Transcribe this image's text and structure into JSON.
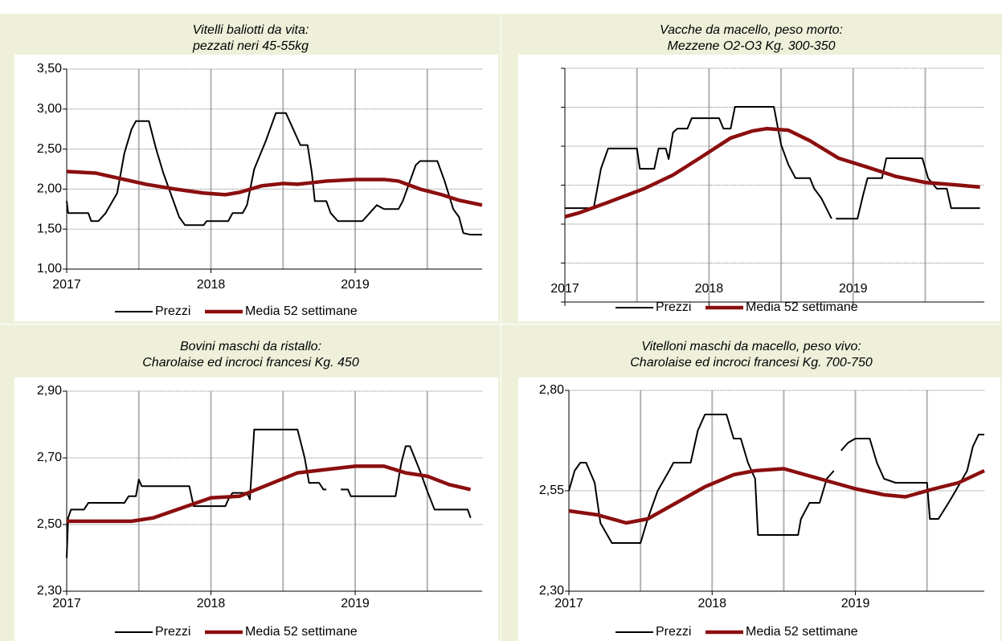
{
  "chart_data": [
    {
      "type": "line",
      "title": [
        "Vitelli baliotti da vita:",
        "pezzati neri 45-55kg"
      ],
      "xlim": [
        2017,
        2019.88
      ],
      "xticks": [
        2017,
        2018,
        2019
      ],
      "xgrid": [
        2017.5,
        2018,
        2018.5,
        2019,
        2019.5
      ],
      "ylim": [
        1,
        3.5
      ],
      "yticks": [
        {
          "value": 1,
          "label": "1,00"
        },
        {
          "value": 1.5,
          "label": "1,50"
        },
        {
          "value": 2,
          "label": "2,00"
        },
        {
          "value": 2.5,
          "label": "2,50"
        },
        {
          "value": 3,
          "label": "3,00"
        },
        {
          "value": 3.5,
          "label": "3,50"
        }
      ],
      "grid": true,
      "series": [
        {
          "name": "Prezzi",
          "color": "#000000",
          "x": [
            2017,
            2017.01,
            2017.15,
            2017.17,
            2017.22,
            2017.27,
            2017.35,
            2017.4,
            2017.45,
            2017.48,
            2017.57,
            2017.62,
            2017.67,
            2017.72,
            2017.78,
            2017.82,
            2017.95,
            2017.97,
            2018.12,
            2018.15,
            2018.22,
            2018.25,
            2018.3,
            2018.38,
            2018.45,
            2018.52,
            2018.57,
            2018.62,
            2018.67,
            2018.7,
            2018.72,
            2018.8,
            2018.83,
            2018.88,
            2019.05,
            2019.1,
            2019.15,
            2019.2,
            2019.3,
            2019.33,
            2019.38,
            2019.42,
            2019.45,
            2019.57,
            2019.62,
            2019.68,
            2019.72,
            2019.75,
            2019.8,
            2019.88
          ],
          "values": [
            1.85,
            1.7,
            1.7,
            1.6,
            1.6,
            1.7,
            1.95,
            2.45,
            2.75,
            2.85,
            2.85,
            2.5,
            2.2,
            1.95,
            1.65,
            1.55,
            1.55,
            1.6,
            1.6,
            1.7,
            1.7,
            1.8,
            2.25,
            2.6,
            2.95,
            2.95,
            2.75,
            2.55,
            2.55,
            2.2,
            1.85,
            1.85,
            1.7,
            1.6,
            1.6,
            1.7,
            1.8,
            1.75,
            1.75,
            1.85,
            2.1,
            2.3,
            2.35,
            2.35,
            2.1,
            1.75,
            1.65,
            1.45,
            1.43,
            1.43
          ]
        },
        {
          "name": "Media 52 settimane",
          "color": "#8b0e0e",
          "x": [
            2017,
            2017.2,
            2017.4,
            2017.55,
            2017.75,
            2017.95,
            2018.1,
            2018.2,
            2018.35,
            2018.5,
            2018.6,
            2018.8,
            2019,
            2019.2,
            2019.3,
            2019.45,
            2019.6,
            2019.72,
            2019.88
          ],
          "values": [
            2.22,
            2.2,
            2.12,
            2.06,
            2.0,
            1.95,
            1.93,
            1.96,
            2.04,
            2.07,
            2.06,
            2.1,
            2.12,
            2.12,
            2.1,
            2.0,
            1.93,
            1.86,
            1.8
          ]
        }
      ]
    },
    {
      "type": "line",
      "title": [
        "Vacche da macello, peso morto:",
        "Mezzene O2-O3 Kg. 300-350"
      ],
      "xlim": [
        2017,
        2019.91
      ],
      "xticks": [
        2017,
        2018,
        2019
      ],
      "xgrid": [
        2017.5,
        2018,
        2018.5,
        2019,
        2019.5
      ],
      "ylim": [
        0,
        6
      ],
      "yticks": [
        0,
        1,
        2,
        3,
        4,
        5,
        6
      ],
      "ytick_labels": false,
      "grid": true,
      "series": [
        {
          "name": "Prezzi",
          "color": "#000000",
          "x": [
            2017,
            2017.2,
            2017.25,
            2017.3,
            2017.5,
            2017.52,
            2017.62,
            2017.65,
            2017.7,
            2017.72,
            2017.75,
            2017.78,
            2017.85,
            2017.88,
            2018.07,
            2018.1,
            2018.15,
            2018.18,
            2018.45,
            2018.5,
            2018.55,
            2018.6,
            2018.7,
            2018.73,
            2018.78,
            2018.85,
            2018.86,
            2018.88,
            2019.03,
            2019.07,
            2019.1,
            2019.2,
            2019.23,
            2019.48,
            2019.52,
            2019.58,
            2019.65,
            2019.68,
            2019.88
          ],
          "values": [
            2.41,
            2.41,
            3.42,
            3.94,
            3.94,
            3.42,
            3.42,
            3.94,
            3.94,
            3.67,
            4.35,
            4.45,
            4.45,
            4.72,
            4.72,
            4.45,
            4.45,
            5.01,
            5.01,
            4.04,
            3.53,
            3.18,
            3.18,
            2.91,
            2.66,
            2.14,
            null,
            2.14,
            2.14,
            2.76,
            3.18,
            3.18,
            3.69,
            3.69,
            3.18,
            2.91,
            2.91,
            2.41,
            2.41
          ]
        },
        {
          "name": "Media 52 settimane",
          "color": "#8b0e0e",
          "x": [
            2017,
            2017.1,
            2017.3,
            2017.55,
            2017.75,
            2017.95,
            2018.15,
            2018.3,
            2018.4,
            2018.55,
            2018.7,
            2018.9,
            2019.1,
            2019.3,
            2019.5,
            2019.7,
            2019.88
          ],
          "values": [
            2.19,
            2.29,
            2.56,
            2.91,
            3.26,
            3.73,
            4.21,
            4.39,
            4.45,
            4.41,
            4.14,
            3.69,
            3.46,
            3.22,
            3.07,
            3.01,
            2.95
          ]
        }
      ]
    },
    {
      "type": "line",
      "title": [
        "Bovini maschi da ristallo:",
        "Charolaise ed incroci francesi Kg. 450"
      ],
      "xlim": [
        2017,
        2019.88
      ],
      "xticks": [
        2017,
        2018,
        2019
      ],
      "xgrid": [
        2017.5,
        2018,
        2018.5,
        2019,
        2019.5
      ],
      "ylim": [
        2.3,
        2.9
      ],
      "yticks": [
        {
          "value": 2.3,
          "label": "2,30"
        },
        {
          "value": 2.5,
          "label": "2,50"
        },
        {
          "value": 2.7,
          "label": "2,70"
        },
        {
          "value": 2.9,
          "label": "2,90"
        }
      ],
      "grid": true,
      "series": [
        {
          "name": "Prezzi",
          "color": "#000000",
          "x": [
            2017,
            2017.01,
            2017.03,
            2017.12,
            2017.15,
            2017.4,
            2017.43,
            2017.48,
            2017.5,
            2017.52,
            2017.85,
            2017.88,
            2018.1,
            2018.12,
            2018.15,
            2018.25,
            2018.27,
            2018.3,
            2018.6,
            2018.65,
            2018.68,
            2018.75,
            2018.78,
            2018.8,
            2018.85,
            2018.9,
            2018.95,
            2018.97,
            2019.28,
            2019.32,
            2019.35,
            2019.38,
            2019.45,
            2019.5,
            2019.55,
            2019.78,
            2019.8
          ],
          "values": [
            2.4,
            2.52,
            2.545,
            2.545,
            2.565,
            2.565,
            2.585,
            2.585,
            2.635,
            2.615,
            2.615,
            2.555,
            2.555,
            2.575,
            2.595,
            2.595,
            2.575,
            2.785,
            2.785,
            2.7,
            2.625,
            2.625,
            2.605,
            2.605,
            null,
            2.605,
            2.605,
            2.585,
            2.585,
            2.685,
            2.735,
            2.735,
            2.66,
            2.6,
            2.545,
            2.545,
            2.52
          ]
        },
        {
          "name": "Media 52 settimane",
          "color": "#8b0e0e",
          "x": [
            2017,
            2017.3,
            2017.45,
            2017.6,
            2017.8,
            2018,
            2018.2,
            2018.4,
            2018.6,
            2018.8,
            2019,
            2019.2,
            2019.35,
            2019.5,
            2019.65,
            2019.8
          ],
          "values": [
            2.51,
            2.51,
            2.51,
            2.52,
            2.55,
            2.58,
            2.585,
            2.62,
            2.655,
            2.665,
            2.675,
            2.675,
            2.655,
            2.645,
            2.62,
            2.605
          ]
        }
      ]
    },
    {
      "type": "line",
      "title": [
        "Vitelloni maschi da macello, peso vivo:",
        "Charolaise ed incroci francesi Kg. 700-750"
      ],
      "xlim": [
        2017,
        2019.9
      ],
      "xticks": [
        2017,
        2018,
        2019
      ],
      "xgrid": [
        2017.5,
        2018,
        2018.5,
        2019,
        2019.5
      ],
      "ylim": [
        2.3,
        2.8
      ],
      "yticks": [
        {
          "value": 2.3,
          "label": "2,30"
        },
        {
          "value": 2.55,
          "label": "2,55"
        },
        {
          "value": 2.8,
          "label": "2,80"
        }
      ],
      "grid": true,
      "series": [
        {
          "name": "Prezzi",
          "color": "#000000",
          "x": [
            2017,
            2017.04,
            2017.08,
            2017.12,
            2017.18,
            2017.22,
            2017.3,
            2017.5,
            2017.55,
            2017.62,
            2017.7,
            2017.73,
            2017.85,
            2017.9,
            2017.95,
            2018.1,
            2018.15,
            2018.2,
            2018.25,
            2018.3,
            2018.32,
            2018.6,
            2018.62,
            2018.68,
            2018.75,
            2018.8,
            2018.85,
            2018.87,
            2018.9,
            2018.95,
            2019,
            2019.1,
            2019.15,
            2019.2,
            2019.28,
            2019.5,
            2019.52,
            2019.58,
            2019.65,
            2019.7,
            2019.78,
            2019.82,
            2019.86,
            2019.9
          ],
          "values": [
            2.55,
            2.6,
            2.62,
            2.62,
            2.57,
            2.47,
            2.42,
            2.42,
            2.48,
            2.55,
            2.6,
            2.62,
            2.62,
            2.7,
            2.74,
            2.74,
            2.68,
            2.68,
            2.62,
            2.58,
            2.44,
            2.44,
            2.48,
            2.52,
            2.52,
            2.58,
            2.6,
            null,
            2.65,
            2.67,
            2.68,
            2.68,
            2.62,
            2.58,
            2.57,
            2.57,
            2.48,
            2.48,
            2.52,
            2.55,
            2.6,
            2.66,
            2.69,
            2.69
          ]
        },
        {
          "name": "Media 52 settimane",
          "color": "#8b0e0e",
          "x": [
            2017,
            2017.2,
            2017.4,
            2017.55,
            2017.75,
            2017.95,
            2018.15,
            2018.3,
            2018.5,
            2018.75,
            2019,
            2019.2,
            2019.35,
            2019.55,
            2019.72,
            2019.9
          ],
          "values": [
            2.5,
            2.49,
            2.47,
            2.48,
            2.52,
            2.56,
            2.59,
            2.6,
            2.605,
            2.58,
            2.555,
            2.54,
            2.535,
            2.555,
            2.57,
            2.6
          ]
        }
      ]
    }
  ]
}
